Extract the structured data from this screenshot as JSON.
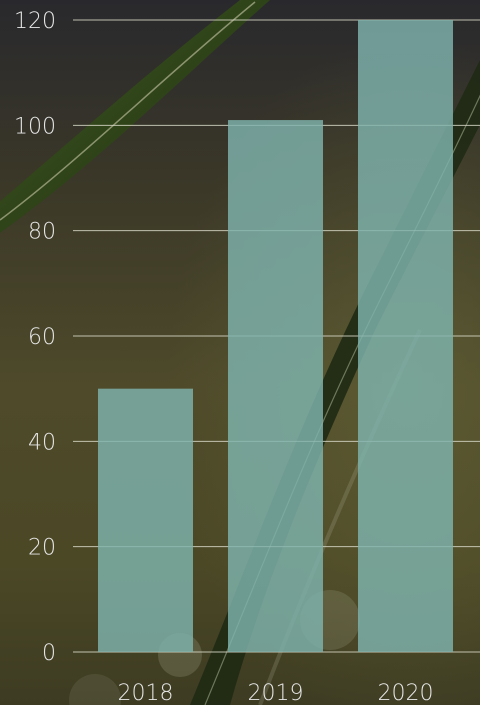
{
  "colors": {
    "bar": "#7fb3ad",
    "gridline": "#d9d9c8",
    "tick_text": "#e6e6e6"
  },
  "background_image": "grass-blade-photo",
  "chart_data": {
    "type": "bar",
    "categories": [
      "2018",
      "2019",
      "2020"
    ],
    "values": [
      50,
      101,
      120
    ],
    "title": "",
    "xlabel": "",
    "ylabel": "",
    "ylim": [
      0,
      120
    ],
    "yticks": [
      "0",
      "20",
      "40",
      "60",
      "80",
      "100",
      "120"
    ],
    "grid": "horizontal",
    "legend": "none"
  }
}
